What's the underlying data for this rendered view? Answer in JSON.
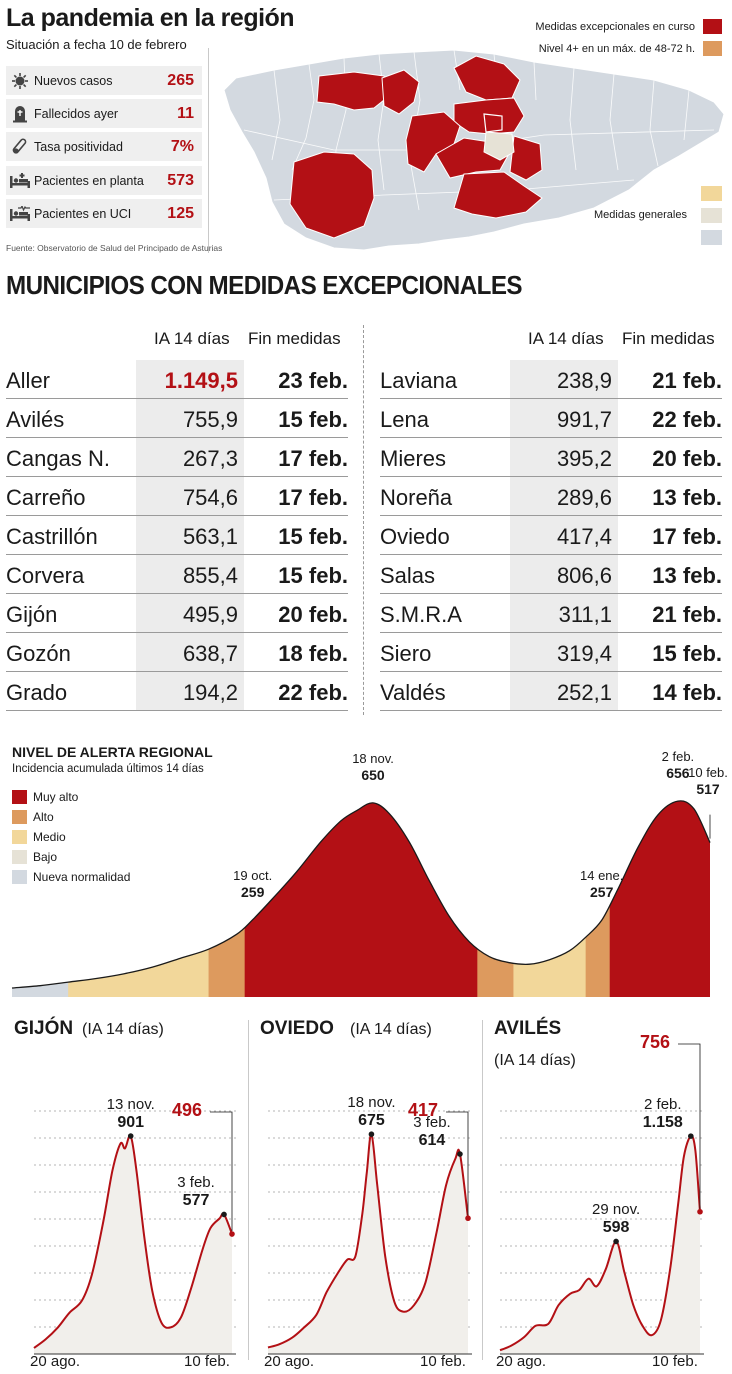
{
  "header": {
    "title": "La pandemia en la región",
    "subtitle": "Situación a fecha 10 de febrero",
    "source": "Fuente: Observatorio de Salud del Principado de Asturias"
  },
  "stats": [
    {
      "label": "Nuevos casos",
      "value": "265",
      "icon": "virus-icon"
    },
    {
      "label": "Fallecidos ayer",
      "value": "11",
      "icon": "tombstone-icon"
    },
    {
      "label": "Tasa positividad",
      "value": "7%",
      "icon": "test-tube-icon"
    },
    {
      "label": "Pacientes en planta",
      "value": "573",
      "icon": "hospital-bed-icon"
    },
    {
      "label": "Pacientes en UCI",
      "value": "125",
      "icon": "icu-bed-icon"
    }
  ],
  "map": {
    "legend": {
      "exceptional": "Medidas excepcionales en curso",
      "level4": "Nivel 4+ en un máx. de 48-72 h.",
      "general": "Medidas generales"
    }
  },
  "colors": {
    "red": "#b31015",
    "orange": "#dd9a5e",
    "yellow": "#f2d79a",
    "beige": "#e6e2d6",
    "grey_blue": "#d3d9e0",
    "line": "#b31015"
  },
  "municipios": {
    "heading": "MUNICIPIOS CON MEDIDAS EXCEPCIONALES",
    "col_ia": "IA 14 días",
    "col_fin": "Fin medidas",
    "left": [
      {
        "name": "Aller",
        "ia": "1.149,5",
        "fin": "23 feb.",
        "highlight": true
      },
      {
        "name": "Avilés",
        "ia": "755,9",
        "fin": "15 feb."
      },
      {
        "name": "Cangas N.",
        "ia": "267,3",
        "fin": "17 feb."
      },
      {
        "name": "Carreño",
        "ia": "754,6",
        "fin": "17 feb."
      },
      {
        "name": "Castrillón",
        "ia": "563,1",
        "fin": "15 feb."
      },
      {
        "name": "Corvera",
        "ia": "855,4",
        "fin": "15 feb."
      },
      {
        "name": "Gijón",
        "ia": "495,9",
        "fin": "20 feb."
      },
      {
        "name": "Gozón",
        "ia": "638,7",
        "fin": "18 feb."
      },
      {
        "name": "Grado",
        "ia": "194,2",
        "fin": "22 feb."
      }
    ],
    "right": [
      {
        "name": "Laviana",
        "ia": "238,9",
        "fin": "21 feb."
      },
      {
        "name": "Lena",
        "ia": "991,7",
        "fin": "22 feb."
      },
      {
        "name": "Mieres",
        "ia": "395,2",
        "fin": "20 feb."
      },
      {
        "name": "Noreña",
        "ia": "289,6",
        "fin": "13 feb."
      },
      {
        "name": "Oviedo",
        "ia": "417,4",
        "fin": "17 feb."
      },
      {
        "name": "Salas",
        "ia": "806,6",
        "fin": "13 feb."
      },
      {
        "name": "S.M.R.A",
        "ia": "311,1",
        "fin": "21 feb."
      },
      {
        "name": "Siero",
        "ia": "319,4",
        "fin": "15 feb."
      },
      {
        "name": "Valdés",
        "ia": "252,1",
        "fin": "14 feb."
      }
    ]
  },
  "chart_data": [
    {
      "type": "area",
      "title": "NIVEL DE ALERTA REGIONAL",
      "subtitle": "Incidencia acumulada últimos 14 días",
      "legend": [
        "Muy alto",
        "Alto",
        "Medio",
        "Bajo",
        "Nueva normalidad"
      ],
      "legend_colors": [
        "#b31015",
        "#dd9a5e",
        "#f2d79a",
        "#e6e2d6",
        "#d3d9e0"
      ],
      "x_start": "2020-08-20",
      "x_end": "2021-02-10",
      "x": [
        "2020-08-20",
        "2020-08-27",
        "2020-09-03",
        "2020-09-10",
        "2020-09-17",
        "2020-09-24",
        "2020-10-01",
        "2020-10-08",
        "2020-10-15",
        "2020-10-19",
        "2020-10-24",
        "2020-10-30",
        "2020-11-05",
        "2020-11-10",
        "2020-11-14",
        "2020-11-18",
        "2020-11-22",
        "2020-11-27",
        "2020-12-02",
        "2020-12-07",
        "2020-12-12",
        "2020-12-17",
        "2020-12-22",
        "2020-12-27",
        "2021-01-01",
        "2021-01-06",
        "2021-01-10",
        "2021-01-14",
        "2021-01-18",
        "2021-01-23",
        "2021-01-28",
        "2021-02-02",
        "2021-02-06",
        "2021-02-10"
      ],
      "values": [
        30,
        38,
        50,
        62,
        78,
        100,
        130,
        160,
        210,
        259,
        330,
        420,
        520,
        590,
        625,
        650,
        615,
        520,
        390,
        270,
        185,
        135,
        115,
        110,
        125,
        155,
        200,
        257,
        360,
        500,
        610,
        656,
        630,
        517
      ],
      "level_bands": [
        {
          "level": "Nueva normalidad",
          "from": "2020-08-20",
          "to": "2020-09-03"
        },
        {
          "level": "Medio",
          "from": "2020-09-03",
          "to": "2020-10-08"
        },
        {
          "level": "Alto",
          "from": "2020-10-08",
          "to": "2020-10-17"
        },
        {
          "level": "Muy alto",
          "from": "2020-10-17",
          "to": "2020-12-14"
        },
        {
          "level": "Alto",
          "from": "2020-12-14",
          "to": "2020-12-23"
        },
        {
          "level": "Medio",
          "from": "2020-12-23",
          "to": "2021-01-10"
        },
        {
          "level": "Alto",
          "from": "2021-01-10",
          "to": "2021-01-16"
        },
        {
          "level": "Muy alto",
          "from": "2021-01-16",
          "to": "2021-02-10"
        }
      ],
      "annotations": [
        {
          "date": "19 oct.",
          "value": "259",
          "x": "2020-10-19",
          "y": 259
        },
        {
          "date": "18 nov.",
          "value": "650",
          "x": "2020-11-18",
          "y": 650
        },
        {
          "date": "14 ene.",
          "value": "257",
          "x": "2021-01-14",
          "y": 257
        },
        {
          "date": "2 feb.",
          "value": "656",
          "x": "2021-02-02",
          "y": 656
        },
        {
          "date": "10 feb.",
          "value": "517",
          "x": "2021-02-10",
          "y": 517
        }
      ],
      "ylim": [
        0,
        700
      ]
    },
    {
      "type": "line",
      "title": "GIJÓN",
      "subtitle": "(IA 14 días)",
      "xlabels": [
        "20 ago.",
        "10 feb."
      ],
      "x": [
        "2020-08-20",
        "2020-08-30",
        "2020-09-10",
        "2020-09-20",
        "2020-10-01",
        "2020-10-10",
        "2020-10-20",
        "2020-10-28",
        "2020-11-04",
        "2020-11-08",
        "2020-11-13",
        "2020-11-18",
        "2020-11-25",
        "2020-12-02",
        "2020-12-10",
        "2020-12-18",
        "2020-12-27",
        "2021-01-05",
        "2021-01-15",
        "2021-01-22",
        "2021-01-30",
        "2021-02-03",
        "2021-02-10"
      ],
      "values": [
        25,
        60,
        110,
        170,
        220,
        330,
        550,
        760,
        870,
        850,
        901,
        760,
        480,
        260,
        130,
        110,
        150,
        270,
        430,
        520,
        560,
        577,
        496
      ],
      "ylim": [
        0,
        1050
      ],
      "annotations": [
        {
          "date": "13 nov.",
          "value": "901",
          "x": "2020-11-13",
          "y": 901
        },
        {
          "date": "3 feb.",
          "value": "577",
          "x": "2021-02-03",
          "y": 577
        }
      ],
      "last_value": "496"
    },
    {
      "type": "line",
      "title": "OVIEDO",
      "subtitle": "(IA 14 días)",
      "xlabels": [
        "20 ago.",
        "10 feb."
      ],
      "x": [
        "2020-08-20",
        "2020-08-30",
        "2020-09-10",
        "2020-09-20",
        "2020-10-01",
        "2020-10-10",
        "2020-10-20",
        "2020-10-28",
        "2020-11-04",
        "2020-11-10",
        "2020-11-14",
        "2020-11-18",
        "2020-11-23",
        "2020-11-30",
        "2020-12-08",
        "2020-12-16",
        "2020-12-25",
        "2021-01-04",
        "2021-01-14",
        "2021-01-22",
        "2021-01-30",
        "2021-02-03",
        "2021-02-10"
      ],
      "values": [
        20,
        30,
        50,
        80,
        120,
        190,
        250,
        290,
        300,
        430,
        560,
        675,
        520,
        300,
        160,
        130,
        150,
        220,
        380,
        520,
        600,
        614,
        417
      ],
      "ylim": [
        0,
        780
      ],
      "annotations": [
        {
          "date": "18 nov.",
          "value": "675",
          "x": "2020-11-18",
          "y": 675
        },
        {
          "date": "3 feb.",
          "value": "614",
          "x": "2021-02-03",
          "y": 614
        }
      ],
      "last_value": "417"
    },
    {
      "type": "line",
      "title": "AVILÉS",
      "subtitle": "(IA 14 días)",
      "xlabels": [
        "20 ago.",
        "10 feb."
      ],
      "x": [
        "2020-08-20",
        "2020-08-30",
        "2020-09-10",
        "2020-09-20",
        "2020-10-01",
        "2020-10-10",
        "2020-10-20",
        "2020-10-28",
        "2020-11-05",
        "2020-11-12",
        "2020-11-20",
        "2020-11-29",
        "2020-12-06",
        "2020-12-14",
        "2020-12-22",
        "2020-12-30",
        "2021-01-07",
        "2021-01-15",
        "2021-01-22",
        "2021-01-27",
        "2021-02-02",
        "2021-02-06",
        "2021-02-10"
      ],
      "values": [
        20,
        45,
        90,
        150,
        160,
        260,
        320,
        340,
        400,
        360,
        450,
        598,
        440,
        260,
        150,
        100,
        180,
        450,
        800,
        1050,
        1158,
        1080,
        756
      ],
      "ylim": [
        0,
        1350
      ],
      "annotations": [
        {
          "date": "29 nov.",
          "value": "598",
          "x": "2020-11-29",
          "y": 598
        },
        {
          "date": "2 feb.",
          "value": "1.158",
          "x": "2021-02-02",
          "y": 1158
        }
      ],
      "last_value": "756"
    }
  ]
}
